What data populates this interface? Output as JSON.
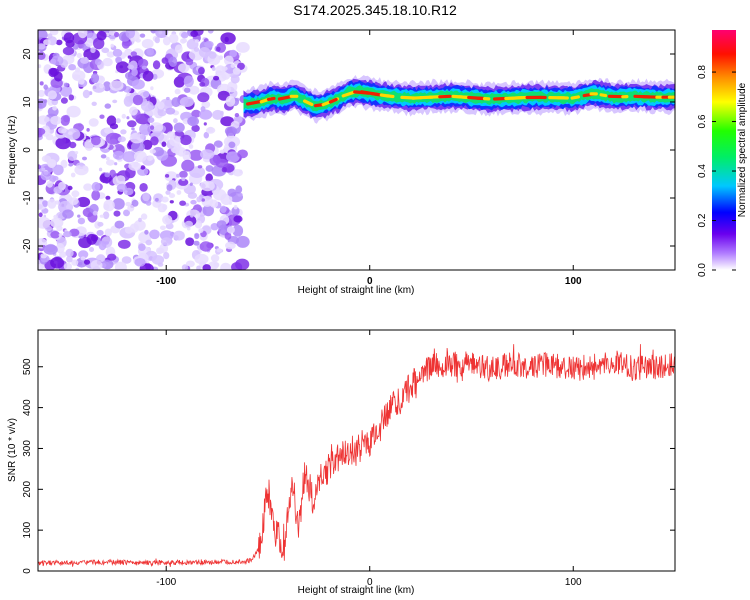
{
  "title": "S174.2025.345.18.10.R12",
  "chart_data": [
    {
      "type": "heatmap",
      "xlabel": "Height of straight line (km)",
      "ylabel": "Frequency (Hz)",
      "xlim": [
        -163,
        150
      ],
      "ylim": [
        -25,
        25
      ],
      "xticks": [
        -100,
        0,
        100
      ],
      "yticks": [
        -20,
        -10,
        0,
        10,
        20
      ],
      "noise_region_x": [
        -163,
        -62
      ],
      "ridge": {
        "x": [
          -62,
          -55,
          -48,
          -42,
          -37,
          -32,
          -27,
          -22,
          -15,
          -10,
          -5,
          0,
          10,
          20,
          40,
          60,
          80,
          100,
          110,
          120,
          130,
          140,
          150
        ],
        "y": [
          9.5,
          9.8,
          10.8,
          10.5,
          11.5,
          10.2,
          9.2,
          9.5,
          10.8,
          12.0,
          12.2,
          11.8,
          11.2,
          10.8,
          11.2,
          10.6,
          11.0,
          10.8,
          11.8,
          11.0,
          11.2,
          11.0,
          11.0
        ]
      },
      "colorbar": {
        "label": "Normalized spectral amplitude",
        "range": [
          0.0,
          0.97
        ],
        "ticks": [
          "0.0",
          "0.2",
          "0.4",
          "0.6",
          "0.8"
        ],
        "colors": [
          "#ffffff",
          "#9b55ff",
          "#6a00ee",
          "#0000ff",
          "#00d0ff",
          "#00ff40",
          "#ffff00",
          "#ff8000",
          "#ff0000",
          "#ff0066"
        ]
      }
    },
    {
      "type": "line",
      "xlabel": "Height of straight line (km)",
      "ylabel": "SNR (10 * v/v)",
      "xlim": [
        -163,
        150
      ],
      "ylim": [
        0,
        590
      ],
      "xticks": [
        -100,
        0,
        100
      ],
      "yticks": [
        0,
        100,
        200,
        300,
        400,
        500
      ],
      "color": "#ee3333",
      "x": [
        -163,
        -150,
        -130,
        -110,
        -90,
        -70,
        -58,
        -54,
        -50,
        -46,
        -44,
        -42,
        -40,
        -38,
        -35,
        -32,
        -28,
        -24,
        -20,
        -15,
        -10,
        -5,
        0,
        5,
        10,
        15,
        20,
        25,
        30,
        40,
        50,
        60,
        70,
        80,
        90,
        100,
        110,
        120,
        130,
        140,
        150
      ],
      "y": [
        20,
        20,
        22,
        20,
        21,
        22,
        25,
        60,
        200,
        90,
        80,
        50,
        150,
        220,
        100,
        240,
        180,
        230,
        250,
        280,
        290,
        300,
        320,
        350,
        390,
        420,
        450,
        480,
        500,
        505,
        510,
        495,
        505,
        500,
        505,
        495,
        500,
        510,
        495,
        500,
        505
      ]
    }
  ]
}
